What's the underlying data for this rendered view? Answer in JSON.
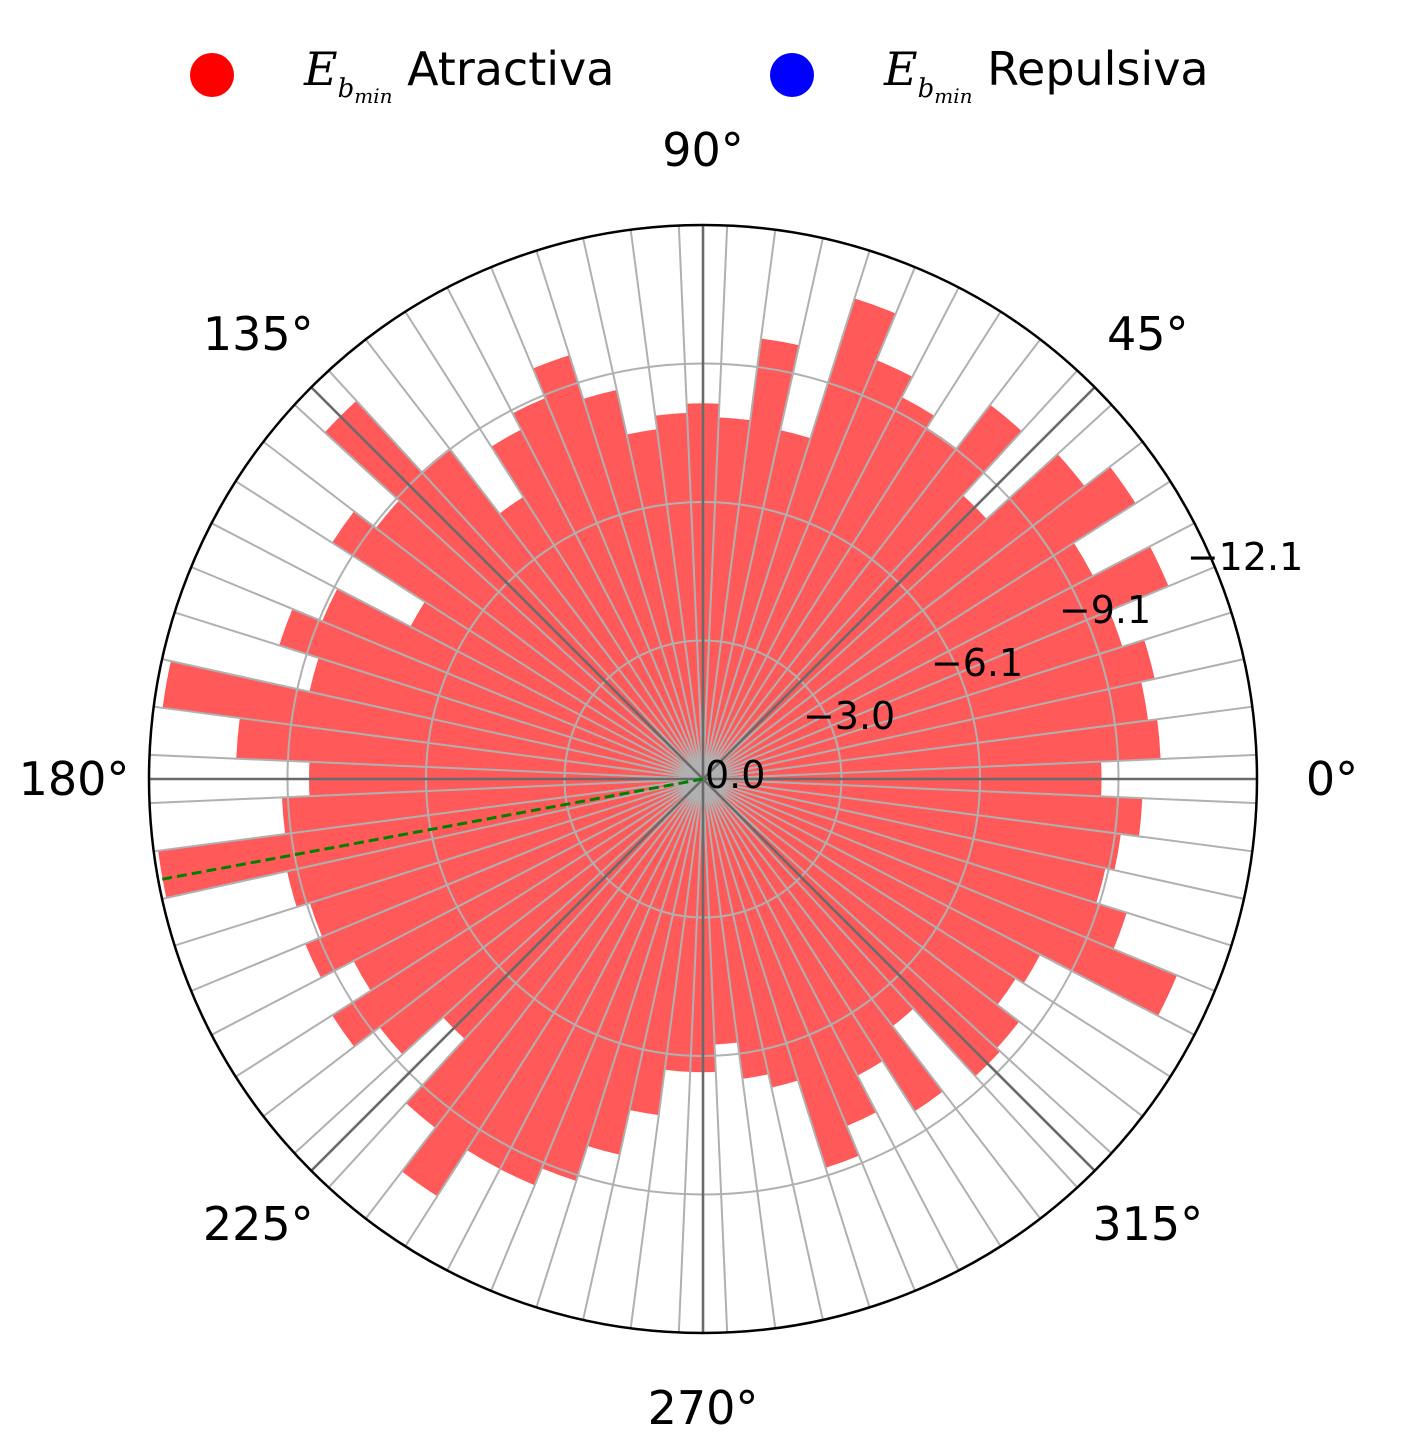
{
  "legend": {
    "items": [
      {
        "symbol": "E",
        "sub": "b",
        "subsub": "min",
        "label": "Atractiva",
        "color": "#ff0000"
      },
      {
        "symbol": "E",
        "sub": "b",
        "subsub": "min",
        "label": "Repulsiva",
        "color": "#0000ff"
      }
    ]
  },
  "chart_data": {
    "type": "bar",
    "projection": "polar",
    "angle_ticks": [
      "0°",
      "45°",
      "90°",
      "135°",
      "180°",
      "225°",
      "270°",
      "315°"
    ],
    "radial_ticks": [
      "0.0",
      "−3.0",
      "−6.1",
      "−9.1",
      "−12.1"
    ],
    "radial_range": [
      0,
      -12.1
    ],
    "bin_width_deg": 5,
    "theta_deg": [
      0,
      5,
      10,
      15,
      20,
      25,
      30,
      35,
      40,
      45,
      50,
      55,
      60,
      65,
      70,
      75,
      80,
      85,
      90,
      95,
      100,
      105,
      110,
      115,
      120,
      125,
      130,
      135,
      140,
      145,
      150,
      155,
      160,
      165,
      170,
      175,
      180,
      185,
      190,
      195,
      200,
      205,
      210,
      215,
      220,
      225,
      230,
      235,
      240,
      245,
      250,
      255,
      260,
      265,
      270,
      275,
      280,
      285,
      290,
      295,
      300,
      305,
      310,
      315,
      320,
      325,
      330,
      335,
      340,
      345,
      350,
      355
    ],
    "series": [
      {
        "name": "Atractiva",
        "color": "#ff0000",
        "values": [
          -8.7,
          -10.0,
          -9.8,
          -10.1,
          -9.6,
          -11.0,
          -9.6,
          -11.2,
          -10.5,
          -8.4,
          -10.3,
          -9.1,
          -9.4,
          -9.9,
          -11.0,
          -7.8,
          -9.7,
          -7.9,
          -8.2,
          -8.0,
          -7.7,
          -8.7,
          -9.7,
          -9.0,
          -8.6,
          -7.3,
          -9.1,
          -11.2,
          -9.0,
          -9.6,
          -7.2,
          -9.0,
          -9.7,
          -8.8,
          -11.9,
          -10.2,
          -8.6,
          -9.2,
          -12.0,
          -9.3,
          -9.0,
          -9.4,
          -8.6,
          -9.6,
          -8.9,
          -7.7,
          -9.6,
          -10.8,
          -9.6,
          -9.6,
          -9.2,
          -8.4,
          -7.4,
          -6.4,
          -6.4,
          -5.8,
          -6.6,
          -6.9,
          -8.9,
          -8.2,
          -7.3,
          -8.6,
          -6.8,
          -8.8,
          -8.7,
          -8.1,
          -8.3,
          -11.2,
          -9.7,
          -9.0,
          -9.2,
          -9.6
        ]
      }
    ],
    "reference_line": {
      "theta_deg": 190.5,
      "color": "#008000",
      "style": "dashed"
    }
  }
}
